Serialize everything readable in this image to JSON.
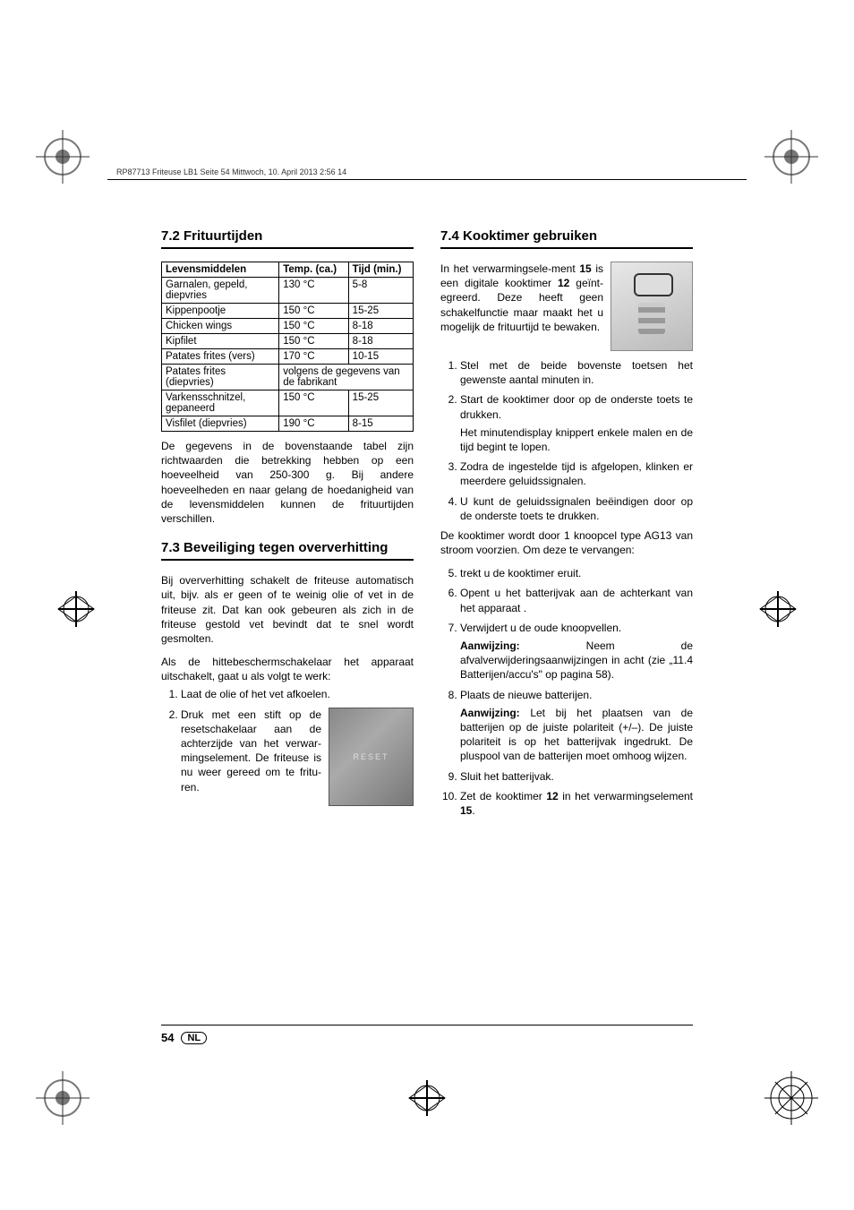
{
  "header": "RP87713 Friteuse LB1  Seite 54  Mittwoch, 10. April 2013  2:56 14",
  "section72": {
    "title": "7.2 Frituurtijden",
    "table": {
      "columns": [
        "Levensmiddelen",
        "Temp. (ca.)",
        "Tijd (min.)"
      ],
      "rows": [
        [
          "Garnalen, gepeld, diepvries",
          "130 °C",
          "5-8"
        ],
        [
          "Kippenpootje",
          "150 °C",
          "15-25"
        ],
        [
          "Chicken wings",
          "150 °C",
          "8-18"
        ],
        [
          "Kipfilet",
          "150 °C",
          "8-18"
        ],
        [
          "Patates frites (vers)",
          "170 °C",
          "10-15"
        ],
        [
          "Patates frites (diepvries)",
          "volgens de gegevens van de fabrikant",
          ""
        ],
        [
          "Varkensschnitzel, gepaneerd",
          "150 °C",
          "15-25"
        ],
        [
          "Visfilet (diepvries)",
          "190 °C",
          "8-15"
        ]
      ],
      "merged_row_index": 5
    },
    "after_table": "De gegevens in de bovenstaande tabel zijn richtwaarden die betrekking hebben op een hoeveelheid van 250-300 g. Bij andere hoeveelheden en naar gelang de hoedanigheid van de levensmiddelen kunnen de frituurtijden verschillen."
  },
  "section73": {
    "title": "7.3 Beveiliging tegen oververhitting",
    "p1": "Bij oververhitting schakelt de friteuse automatisch uit, bijv. als er geen of te weinig olie of vet in de friteuse zit. Dat kan ook gebeuren als zich in de friteuse gestold vet bevindt dat te snel wordt gesmolten.",
    "p2": "Als de hittebeschermschakelaar het apparaat uitschakelt, gaat u als volgt te werk:",
    "li1": "Laat de olie of het vet afkoelen.",
    "li2": "Druk met een stift op de resetschakelaar aan de achterzijde van het verwar-mingselement. De friteuse is nu weer gereed om te fritu-ren.",
    "reset_label": "RESET"
  },
  "section74": {
    "title": "7.4 Kooktimer gebruiken",
    "intro_a": "In het verwarmingsele-ment ",
    "intro_b": " is een digitale kooktimer ",
    "intro_c": " geïnt-egreerd. Deze heeft geen schakelfunctie maar maakt het u mogelijk de frituurtijd te bewaken.",
    "ref15": "15",
    "ref12": "12",
    "li1": "Stel met de beide bovenste toetsen het gewenste aantal minuten in.",
    "li2": "Start de kooktimer door op de onderste toets te drukken.",
    "li2b": "Het minutendisplay knippert enkele malen en de tijd begint te lopen.",
    "li3": "Zodra de ingestelde tijd is afgelopen, klinken er meerdere geluidssignalen.",
    "li4": "U kunt de geluidssignalen beëindigen door op de onderste toets te drukken.",
    "between": "De kooktimer wordt door 1 knoopcel type AG13 van stroom voorzien. Om deze te vervangen:",
    "li5": "trekt u de kooktimer eruit.",
    "li6": "Opent u het batterijvak aan de achterkant van het apparaat .",
    "li7": "Verwijdert u de oude knoopvellen.",
    "note1_label": "Aanwijzing:",
    "note1_text": " Neem de afvalverwijderingsaanwijzingen in acht (zie „11.4 Batterijen/accu's\" op pagina 58).",
    "li8": "Plaats de nieuwe batterijen.",
    "note2_label": "Aanwijzing:",
    "note2_text": " Let bij het plaatsen van de batterijen op de juiste polariteit (+/–). De juiste polariteit is op het batterijvak ingedrukt. De pluspool van de batterijen moet omhoog wijzen.",
    "li9": "Sluit het batterijvak.",
    "li10_a": "Zet de kooktimer ",
    "li10_b": " in het verwarmingselement ",
    "li10_c": "."
  },
  "footer": {
    "page": "54",
    "country": "NL"
  }
}
